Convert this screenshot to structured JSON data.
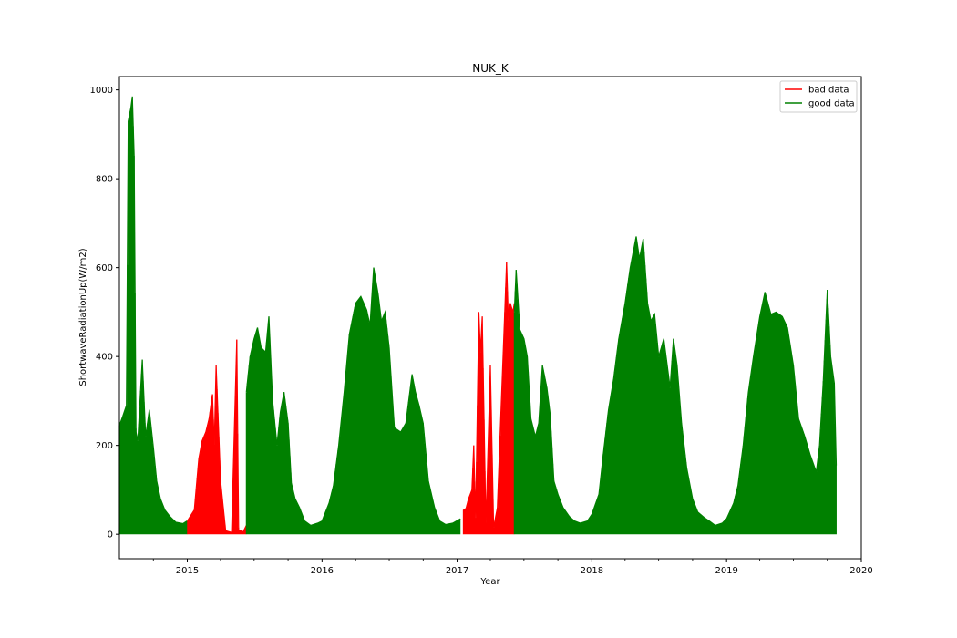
{
  "chart_data": {
    "type": "line",
    "title": "NUK_K",
    "xlabel": "Year",
    "ylabel": "ShortwaveRadiationUp(W/m2)",
    "xlim": [
      "2014-07-01",
      "2020-01-01"
    ],
    "ylim": [
      -55,
      1030
    ],
    "x_ticks": [
      "2015",
      "2016",
      "2017",
      "2018",
      "2019",
      "2020"
    ],
    "y_ticks": [
      0,
      200,
      400,
      600,
      800,
      1000
    ],
    "grid": false,
    "legend_position": "upper-right",
    "colors": {
      "bad": "#ff0000",
      "good": "#008000"
    },
    "series": [
      {
        "name": "bad data",
        "color": "#ff0000",
        "segments": [
          {
            "x": [
              "2015-01-01",
              "2015-01-20",
              "2015-02-01",
              "2015-02-10",
              "2015-02-20",
              "2015-03-01",
              "2015-03-10",
              "2015-03-15",
              "2015-03-20",
              "2015-04-01",
              "2015-04-15",
              "2015-05-01",
              "2015-05-15",
              "2015-05-20",
              "2015-06-01",
              "2015-06-10"
            ],
            "y": [
              30,
              55,
              170,
              210,
              230,
              260,
              315,
              200,
              380,
              120,
              8,
              4,
              438,
              10,
              5,
              20
            ]
          },
          {
            "x": [
              "2017-01-18",
              "2017-01-25",
              "2017-02-01",
              "2017-02-10",
              "2017-02-15",
              "2017-02-20",
              "2017-03-01",
              "2017-03-05",
              "2017-03-10",
              "2017-03-20",
              "2017-04-01",
              "2017-04-10",
              "2017-04-20",
              "2017-05-01",
              "2017-05-10",
              "2017-05-15",
              "2017-05-20",
              "2017-05-25",
              "2017-06-01",
              "2017-06-05"
            ],
            "y": [
              55,
              58,
              80,
              100,
              200,
              35,
              500,
              410,
              490,
              20,
              380,
              15,
              60,
              300,
              500,
              612,
              480,
              520,
              500,
              520
            ]
          }
        ]
      },
      {
        "name": "good data",
        "color": "#008000",
        "segments": [
          {
            "x": [
              "2014-07-01",
              "2014-07-10",
              "2014-07-20",
              "2014-07-25",
              "2014-08-01",
              "2014-08-05",
              "2014-08-10",
              "2014-08-15",
              "2014-08-20",
              "2014-09-01",
              "2014-09-10",
              "2014-09-20",
              "2014-10-01",
              "2014-10-10",
              "2014-10-20",
              "2014-11-01",
              "2014-11-15",
              "2014-12-01",
              "2014-12-20",
              "2014-12-31"
            ],
            "y": [
              245,
              265,
              290,
              930,
              960,
              985,
              850,
              230,
              210,
              393,
              220,
              280,
              195,
              120,
              80,
              55,
              40,
              27,
              24,
              30
            ]
          },
          {
            "x": [
              "2015-06-10",
              "2015-06-20",
              "2015-07-01",
              "2015-07-10",
              "2015-07-20",
              "2015-08-01",
              "2015-08-10",
              "2015-08-20",
              "2015-09-01",
              "2015-09-10",
              "2015-09-20",
              "2015-10-01",
              "2015-10-10",
              "2015-10-20",
              "2015-11-01",
              "2015-11-15",
              "2015-12-01",
              "2015-12-20",
              "2016-01-01",
              "2016-01-20",
              "2016-02-01",
              "2016-02-15",
              "2016-03-01",
              "2016-03-15",
              "2016-04-01",
              "2016-04-15",
              "2016-05-01",
              "2016-05-10",
              "2016-05-20",
              "2016-06-01",
              "2016-06-10",
              "2016-06-20",
              "2016-07-01",
              "2016-07-15",
              "2016-08-01",
              "2016-08-15",
              "2016-09-01",
              "2016-09-10",
              "2016-09-20",
              "2016-10-01",
              "2016-10-15",
              "2016-11-01",
              "2016-11-15",
              "2016-12-01",
              "2016-12-20",
              "2017-01-10"
            ],
            "y": [
              320,
              400,
              440,
              465,
              420,
              410,
              490,
              300,
              200,
              275,
              320,
              250,
              115,
              80,
              60,
              30,
              20,
              25,
              30,
              70,
              110,
              200,
              320,
              450,
              520,
              535,
              505,
              470,
              600,
              540,
              480,
              500,
              420,
              240,
              230,
              250,
              360,
              320,
              290,
              250,
              120,
              60,
              30,
              22,
              25,
              35
            ]
          },
          {
            "x": [
              "2017-06-05",
              "2017-06-10",
              "2017-06-20",
              "2017-07-01",
              "2017-07-10",
              "2017-07-20",
              "2017-08-01",
              "2017-08-10",
              "2017-08-20",
              "2017-09-01",
              "2017-09-10",
              "2017-09-20",
              "2017-10-01",
              "2017-10-15",
              "2017-11-01",
              "2017-11-15",
              "2017-12-01",
              "2017-12-20",
              "2018-01-01",
              "2018-01-20",
              "2018-02-01",
              "2018-02-15",
              "2018-03-01",
              "2018-03-15",
              "2018-04-01",
              "2018-04-15",
              "2018-05-01",
              "2018-05-10",
              "2018-05-20",
              "2018-06-01",
              "2018-06-10",
              "2018-06-20",
              "2018-07-01",
              "2018-07-15",
              "2018-08-01",
              "2018-08-10",
              "2018-08-20",
              "2018-09-01",
              "2018-09-15",
              "2018-10-01",
              "2018-10-15",
              "2018-11-01",
              "2018-11-15",
              "2018-12-01",
              "2018-12-20",
              "2019-01-01",
              "2019-01-20",
              "2019-02-01",
              "2019-02-15",
              "2019-03-01",
              "2019-03-15",
              "2019-04-01",
              "2019-04-15",
              "2019-05-01",
              "2019-05-15",
              "2019-06-01",
              "2019-06-15",
              "2019-07-01",
              "2019-07-15",
              "2019-08-01",
              "2019-08-15",
              "2019-09-01",
              "2019-09-10",
              "2019-09-20",
              "2019-10-01",
              "2019-10-10",
              "2019-10-20",
              "2019-10-25"
            ],
            "y": [
              500,
              595,
              460,
              440,
              400,
              260,
              220,
              250,
              380,
              330,
              270,
              120,
              90,
              60,
              40,
              30,
              25,
              30,
              45,
              90,
              180,
              280,
              350,
              440,
              520,
              600,
              670,
              620,
              665,
              520,
              480,
              495,
              400,
              440,
              330,
              440,
              380,
              250,
              150,
              80,
              50,
              38,
              30,
              20,
              25,
              35,
              70,
              110,
              200,
              320,
              400,
              490,
              545,
              495,
              500,
              490,
              465,
              380,
              260,
              220,
              180,
              140,
              200,
              345,
              550,
              400,
              340,
              155
            ]
          }
        ]
      }
    ]
  }
}
